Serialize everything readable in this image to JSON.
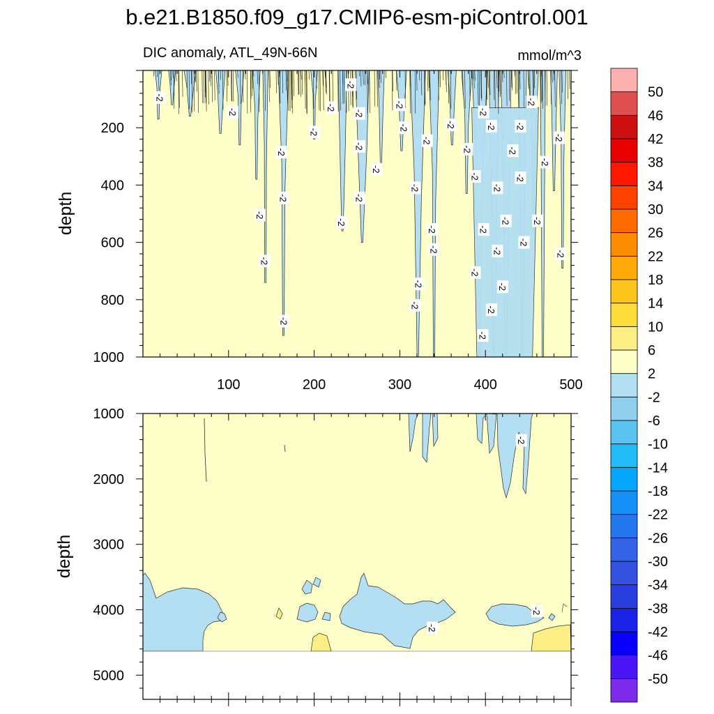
{
  "chart_data": {
    "type": "contour",
    "title": "b.e21.B1850.f09_g17.CMIP6-esm-piControl.001",
    "left_label": "DIC anomaly, ATL_49N-66N",
    "right_label": "mmol/m^3",
    "ylabel": "depth",
    "top_panel": {
      "xlim": [
        0,
        500
      ],
      "ylim": [
        1000,
        0
      ],
      "x_ticks": [
        100,
        200,
        300,
        400,
        500
      ],
      "y_ticks": [
        200,
        400,
        600,
        800,
        1000
      ],
      "tick_labels_x": [
        "100",
        "200",
        "300",
        "400",
        "500"
      ],
      "tick_labels_y": [
        "200",
        "400",
        "600",
        "800",
        "1000"
      ],
      "contour_labels": [
        {
          "x": 20,
          "y": 95,
          "text": "-2"
        },
        {
          "x": 105,
          "y": 145,
          "text": "-2"
        },
        {
          "x": 137,
          "y": 505,
          "text": "-2"
        },
        {
          "x": 142,
          "y": 665,
          "text": "-2"
        },
        {
          "x": 162,
          "y": 285,
          "text": "-2"
        },
        {
          "x": 164,
          "y": 445,
          "text": "-2"
        },
        {
          "x": 165,
          "y": 875,
          "text": "-2"
        },
        {
          "x": 200,
          "y": 215,
          "text": "-2"
        },
        {
          "x": 220,
          "y": 130,
          "text": "-2"
        },
        {
          "x": 232,
          "y": 530,
          "text": "-2"
        },
        {
          "x": 243,
          "y": 50,
          "text": "-2"
        },
        {
          "x": 253,
          "y": 150,
          "text": "-2"
        },
        {
          "x": 253,
          "y": 265,
          "text": "-2"
        },
        {
          "x": 253,
          "y": 445,
          "text": "-2"
        },
        {
          "x": 273,
          "y": 345,
          "text": "-2"
        },
        {
          "x": 300,
          "y": 120,
          "text": "-2"
        },
        {
          "x": 305,
          "y": 200,
          "text": "-2"
        },
        {
          "x": 318,
          "y": 410,
          "text": "-2"
        },
        {
          "x": 322,
          "y": 745,
          "text": "-2"
        },
        {
          "x": 318,
          "y": 820,
          "text": "-2"
        },
        {
          "x": 332,
          "y": 245,
          "text": "-2"
        },
        {
          "x": 338,
          "y": 555,
          "text": "-2"
        },
        {
          "x": 340,
          "y": 625,
          "text": "-2"
        },
        {
          "x": 360,
          "y": 190,
          "text": "-2"
        },
        {
          "x": 379,
          "y": 275,
          "text": "-2"
        },
        {
          "x": 388,
          "y": 370,
          "text": "-2"
        },
        {
          "x": 388,
          "y": 705,
          "text": "-2"
        },
        {
          "x": 398,
          "y": 145,
          "text": "-2"
        },
        {
          "x": 398,
          "y": 555,
          "text": "-2"
        },
        {
          "x": 397,
          "y": 925,
          "text": "-2"
        },
        {
          "x": 407,
          "y": 195,
          "text": "-2"
        },
        {
          "x": 407,
          "y": 835,
          "text": "-2"
        },
        {
          "x": 414,
          "y": 410,
          "text": "-2"
        },
        {
          "x": 414,
          "y": 630,
          "text": "-2"
        },
        {
          "x": 420,
          "y": 755,
          "text": "-2"
        },
        {
          "x": 424,
          "y": 525,
          "text": "-2"
        },
        {
          "x": 432,
          "y": 280,
          "text": "-2"
        },
        {
          "x": 441,
          "y": 195,
          "text": "-2"
        },
        {
          "x": 441,
          "y": 375,
          "text": "-2"
        },
        {
          "x": 445,
          "y": 600,
          "text": "-2"
        },
        {
          "x": 454,
          "y": 110,
          "text": "-2"
        },
        {
          "x": 461,
          "y": 525,
          "text": "-2"
        },
        {
          "x": 470,
          "y": 320,
          "text": "-2"
        },
        {
          "x": 486,
          "y": 235,
          "text": "-2"
        },
        {
          "x": 488,
          "y": 640,
          "text": "-2"
        }
      ]
    },
    "bottom_panel": {
      "xlim": [
        0,
        500
      ],
      "ylim": [
        5370,
        1000
      ],
      "y_ticks": [
        1000,
        2000,
        3000,
        4000,
        5000
      ],
      "tick_labels_y": [
        "1000",
        "2000",
        "3000",
        "4000",
        "5000"
      ],
      "bottom_depth": 4630,
      "contour_labels": [
        {
          "x": 442,
          "y": 1410,
          "text": "-2"
        },
        {
          "x": 338,
          "y": 4280,
          "text": "-2"
        },
        {
          "x": 460,
          "y": 4020,
          "text": "-2"
        }
      ]
    },
    "levels": [
      -50,
      -46,
      -42,
      -38,
      -34,
      -30,
      -26,
      -22,
      -18,
      -14,
      -10,
      -6,
      -2,
      2,
      6,
      10,
      14,
      18,
      22,
      26,
      30,
      34,
      38,
      42,
      46,
      50
    ],
    "level_labels": [
      "-50",
      "-46",
      "-42",
      "-38",
      "-34",
      "-30",
      "-26",
      "-22",
      "-18",
      "-14",
      "-10",
      "-6",
      "-2",
      "2",
      "6",
      "10",
      "14",
      "18",
      "22",
      "26",
      "30",
      "34",
      "38",
      "42",
      "46",
      "50"
    ],
    "colors": [
      "#7d2ae8",
      "#4b16f5",
      "#0a00fa",
      "#1a22e6",
      "#2a3ee0",
      "#3452df",
      "#3563e8",
      "#2478ef",
      "#1490f7",
      "#06a6fb",
      "#22bbf6",
      "#5ac4ee",
      "#8fcfeb",
      "#b4dff2",
      "#fefec8",
      "#fdef85",
      "#fedd38",
      "#fdc41e",
      "#fda90b",
      "#fd8d00",
      "#fe6b00",
      "#fe4300",
      "#fe1800",
      "#e80000",
      "#cc0f0f",
      "#e05050",
      "#fdb0b0"
    ],
    "fill_colors": {
      "positive_band": "#fefec8",
      "negative_band": "#b4dff2",
      "warm_band": "#fdef85"
    }
  }
}
